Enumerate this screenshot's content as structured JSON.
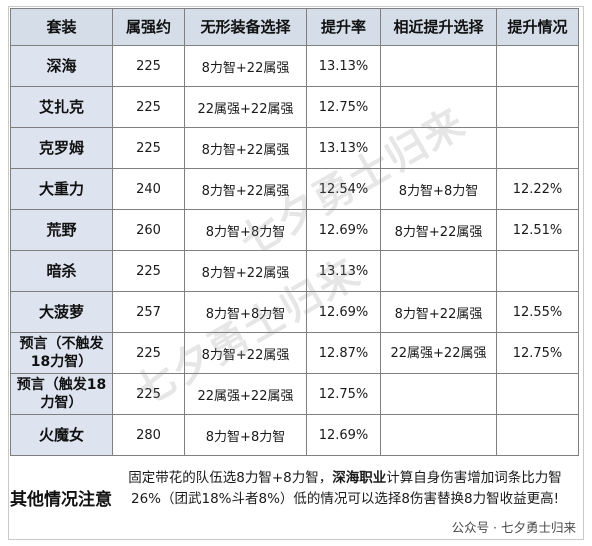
{
  "headers": {
    "suit": "套装",
    "attr": "属强约",
    "choice": "无形装备选择",
    "rate": "提升率",
    "alt_choice": "相近提升选择",
    "alt_rate": "提升情况"
  },
  "rows": [
    {
      "suit": "深海",
      "attr": "225",
      "choice": "8力智+22属强",
      "rate": "13.13%",
      "alt_choice": "",
      "alt_rate": ""
    },
    {
      "suit": "艾扎克",
      "attr": "225",
      "choice": "22属强+22属强",
      "rate": "12.75%",
      "alt_choice": "",
      "alt_rate": ""
    },
    {
      "suit": "克罗姆",
      "attr": "225",
      "choice": "8力智+22属强",
      "rate": "13.13%",
      "alt_choice": "",
      "alt_rate": ""
    },
    {
      "suit": "大重力",
      "attr": "240",
      "choice": "8力智+22属强",
      "rate": "12.54%",
      "alt_choice": "8力智+8力智",
      "alt_rate": "12.22%"
    },
    {
      "suit": "荒野",
      "attr": "260",
      "choice": "8力智+8力智",
      "rate": "12.69%",
      "alt_choice": "8力智+22属强",
      "alt_rate": "12.51%"
    },
    {
      "suit": "暗杀",
      "attr": "225",
      "choice": "8力智+22属强",
      "rate": "13.13%",
      "alt_choice": "",
      "alt_rate": ""
    },
    {
      "suit": "大菠萝",
      "attr": "257",
      "choice": "8力智+8力智",
      "rate": "12.69%",
      "alt_choice": "8力智+22属强",
      "alt_rate": "12.55%"
    },
    {
      "suit": "预言（不触发18力智）",
      "attr": "225",
      "choice": "8力智+22属强",
      "rate": "12.87%",
      "alt_choice": "22属强+22属强",
      "alt_rate": "12.75%"
    },
    {
      "suit": "预言（触发18力智）",
      "attr": "225",
      "choice": "22属强+22属强",
      "rate": "12.75%",
      "alt_choice": "",
      "alt_rate": ""
    },
    {
      "suit": "火魔女",
      "attr": "280",
      "choice": "8力智+8力智",
      "rate": "12.69%",
      "alt_choice": "",
      "alt_rate": ""
    }
  ],
  "note": {
    "title": "其他情况注意",
    "text_1": "固定带花的队伍选8力智+8力智，",
    "text_bold": "深海职业",
    "text_2": "计算自身伤害增加词条比力智26%（团武18%斗者8%）低的情况可以选择8伤害替换8力智收益更高!"
  },
  "watermark": "七夕勇士归来",
  "credit": "公众号 · 七夕勇士归来"
}
